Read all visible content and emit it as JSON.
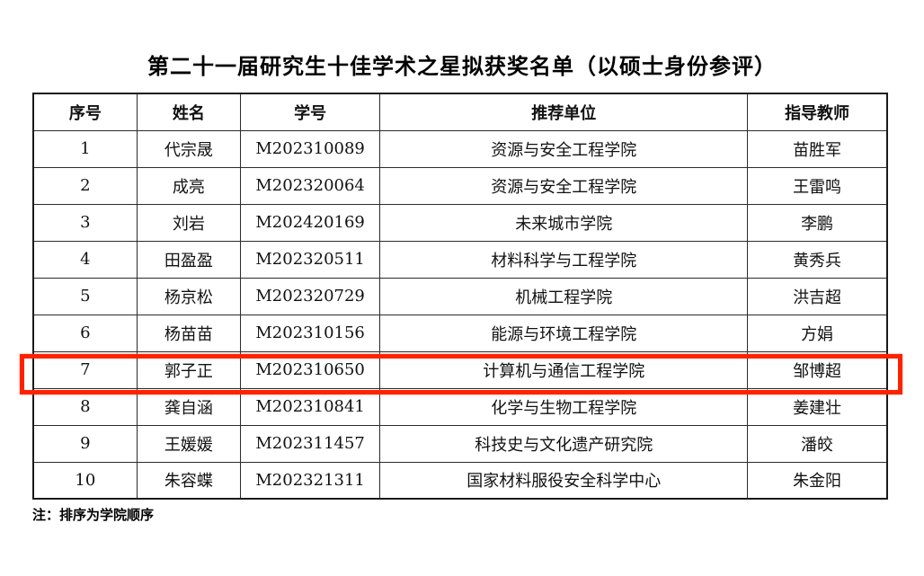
{
  "page": {
    "title": "第二十一届研究生十佳学术之星拟获奖名单（以硕士身份参评）",
    "note": "注：排序为学院顺序"
  },
  "table": {
    "headers": [
      "序号",
      "姓名",
      "学号",
      "推荐单位",
      "指导教师"
    ],
    "rows": [
      [
        "1",
        "代宗晟",
        "M202310089",
        "资源与安全工程学院",
        "苗胜军"
      ],
      [
        "2",
        "成亮",
        "M202320064",
        "资源与安全工程学院",
        "王雷鸣"
      ],
      [
        "3",
        "刘岩",
        "M202420169",
        "未来城市学院",
        "李鹏"
      ],
      [
        "4",
        "田盈盈",
        "M202320511",
        "材料科学与工程学院",
        "黄秀兵"
      ],
      [
        "5",
        "杨京松",
        "M202320729",
        "机械工程学院",
        "洪吉超"
      ],
      [
        "6",
        "杨苗苗",
        "M202310156",
        "能源与环境工程学院",
        "方娟"
      ],
      [
        "7",
        "郭子正",
        "M202310650",
        "计算机与通信工程学院",
        "邹博超"
      ],
      [
        "8",
        "龚自涵",
        "M202310841",
        "化学与生物工程学院",
        "姜建壮"
      ],
      [
        "9",
        "王媛媛",
        "M202311457",
        "科技史与文化遗产研究院",
        "潘皎"
      ],
      [
        "10",
        "朱容蝶",
        "M202321311",
        "国家材料服役安全科学中心",
        "朱金阳"
      ]
    ],
    "highlighted_row_index": 6,
    "highlight_color": "#ff2200"
  }
}
